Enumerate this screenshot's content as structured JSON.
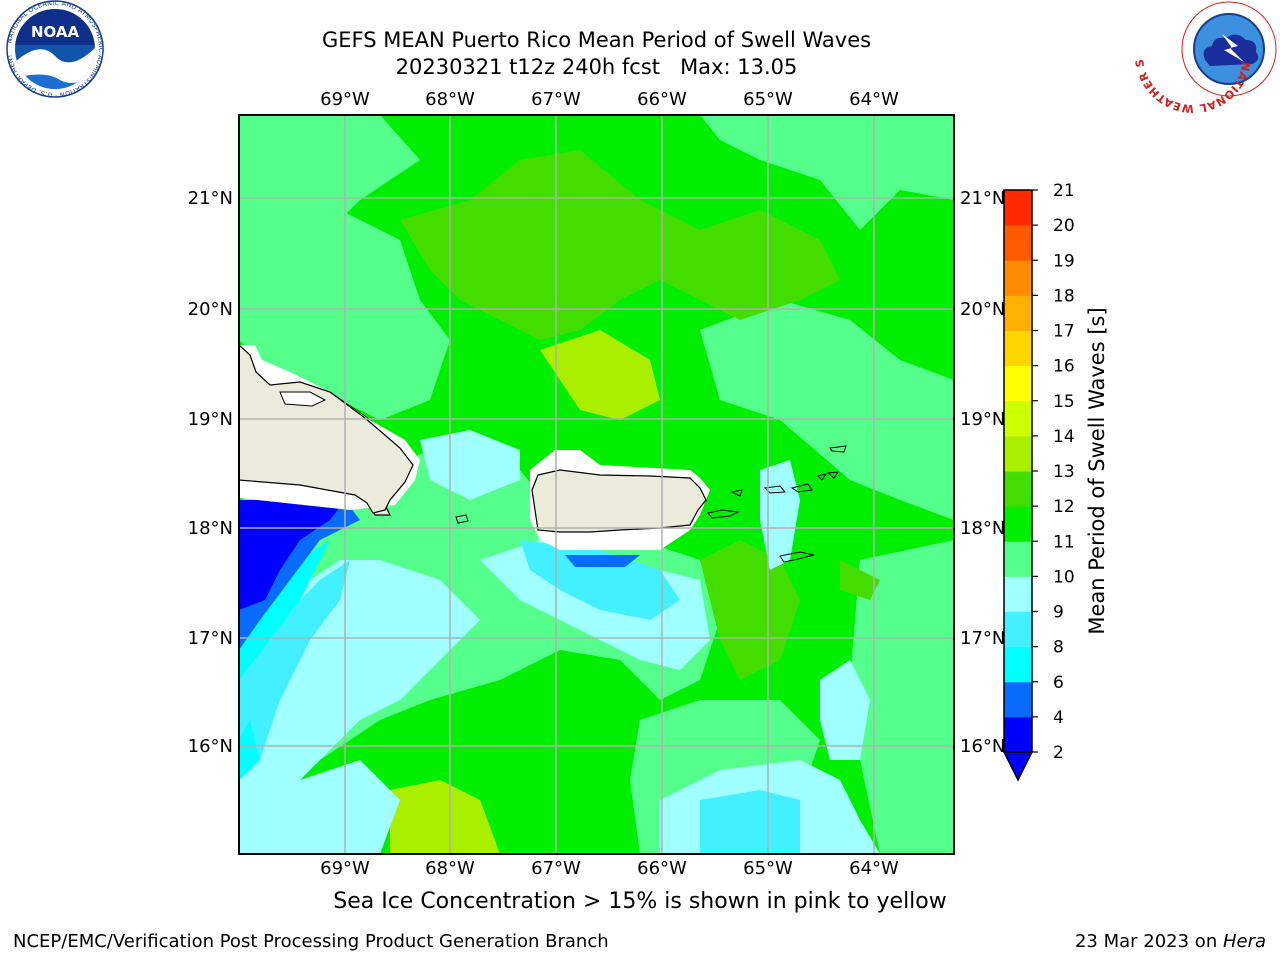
{
  "title": {
    "line1": "GEFS MEAN Puerto Rico Mean Period of Swell Waves",
    "line2_date": "20230321 t12z 240h fcst",
    "line2_max": "Max: 13.05"
  },
  "map": {
    "lon_labels": [
      "69°W",
      "68°W",
      "67°W",
      "66°W",
      "65°W",
      "64°W"
    ],
    "lat_labels": [
      "21°N",
      "20°N",
      "19°N",
      "18°N",
      "17°N",
      "16°N"
    ],
    "lon_range": [
      -70,
      -63.3
    ],
    "lat_range": [
      15,
      21.7
    ],
    "gridlines": true
  },
  "colorbar": {
    "label": "Mean Period of Swell Waves [s]",
    "ticks": [
      "2",
      "4",
      "6",
      "8",
      "9",
      "10",
      "11",
      "12",
      "13",
      "14",
      "15",
      "16",
      "17",
      "18",
      "19",
      "20",
      "21"
    ],
    "colors": [
      "#0000ff",
      "#0a6cff",
      "#00ffff",
      "#43f0ff",
      "#a0ffff",
      "#55ff8c",
      "#00ef00",
      "#44dd00",
      "#aaee00",
      "#ccff00",
      "#ffff00",
      "#ffd700",
      "#ffb000",
      "#ff8c00",
      "#ff5a00",
      "#ff2a00"
    ],
    "extend": "min"
  },
  "caption": "Sea Ice Concentration > 15% is shown in pink to yellow",
  "footer": {
    "left": "NCEP/EMC/Verification Post Processing Product Generation Branch",
    "right_prefix": "23 Mar 2023 on ",
    "right_host": "Hera"
  },
  "logos": {
    "noaa": "NOAA",
    "nws": "NATIONAL WEATHER SERVICE",
    "noaa_ring": "NATIONAL OCEANIC AND ATMOSPHERIC ADMINISTRATION · U.S. DEPARTMENT OF COMMERCE"
  }
}
